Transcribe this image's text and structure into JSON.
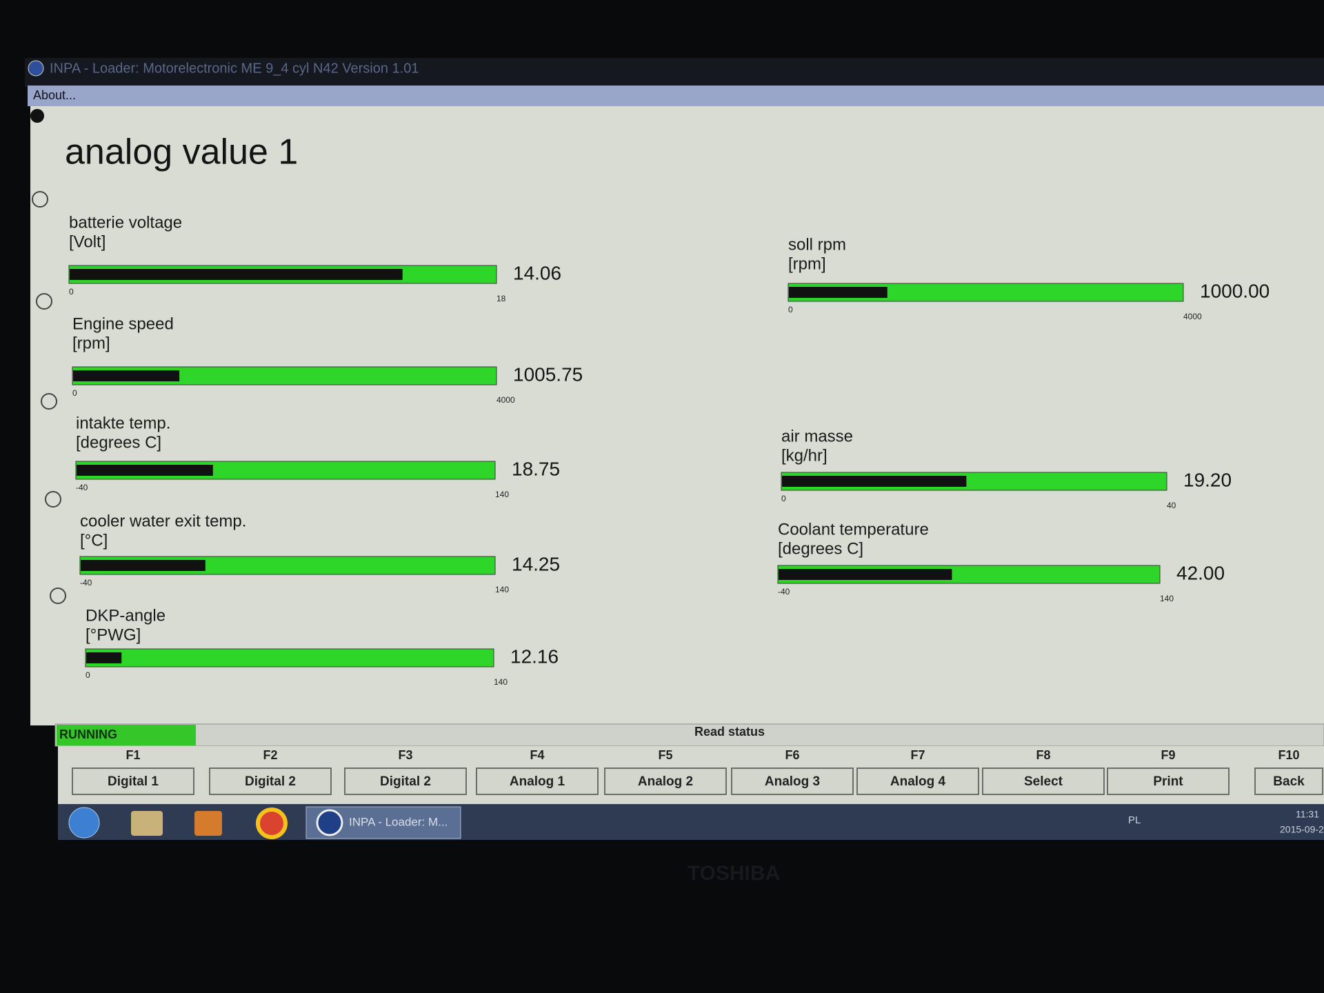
{
  "window": {
    "title": "INPA - Loader: Motorelectronic ME 9_4 cyl N42 Version 1.01",
    "menu": "About..."
  },
  "screen": {
    "title": "analog value 1"
  },
  "gauges": [
    {
      "label": "batterie voltage",
      "unit": "[Volt]",
      "min": 0,
      "max": 18,
      "value": 14.06
    },
    {
      "label": "Engine speed",
      "unit": "[rpm]",
      "min": 0,
      "max": 4000,
      "value": 1005.75
    },
    {
      "label": "intakte temp.",
      "unit": "[degrees C]",
      "min": -40,
      "max": 140,
      "value": 18.75
    },
    {
      "label": "cooler water exit temp.",
      "unit": "[°C]",
      "min": -40,
      "max": 140,
      "value": 14.25
    },
    {
      "label": "DKP-angle",
      "unit": "[°PWG]",
      "min": 0,
      "max": 140,
      "value": 12.16
    },
    {
      "label": "soll rpm",
      "unit": "[rpm]",
      "min": 0,
      "max": 4000,
      "value": 1000,
      "value_label": "1000.00"
    },
    {
      "label": "air masse",
      "unit": "[kg/hr]",
      "min": 0,
      "max": 40,
      "value": 19.2,
      "value_label": "19.20"
    },
    {
      "label": "Coolant temperature",
      "unit": "[degrees C]",
      "min": -40,
      "max": 140,
      "value": 42,
      "value_label": "42.00"
    }
  ],
  "status": {
    "state": "RUNNING",
    "label": "Read status"
  },
  "function_keys": [
    {
      "key": "F1",
      "label": "Digital 1"
    },
    {
      "key": "F2",
      "label": "Digital 2"
    },
    {
      "key": "F3",
      "label": "Digital 2"
    },
    {
      "key": "F4",
      "label": "Analog 1"
    },
    {
      "key": "F5",
      "label": "Analog 2"
    },
    {
      "key": "F6",
      "label": "Analog 3"
    },
    {
      "key": "F7",
      "label": "Analog 4"
    },
    {
      "key": "F8",
      "label": "Select"
    },
    {
      "key": "F9",
      "label": "Print"
    },
    {
      "key": "F10",
      "label": "Back"
    }
  ],
  "taskbar": {
    "task": "INPA - Loader: M...",
    "language": "PL",
    "time": "11:31",
    "date": "2015-09-2"
  },
  "bezel": "TOSHIBA"
}
